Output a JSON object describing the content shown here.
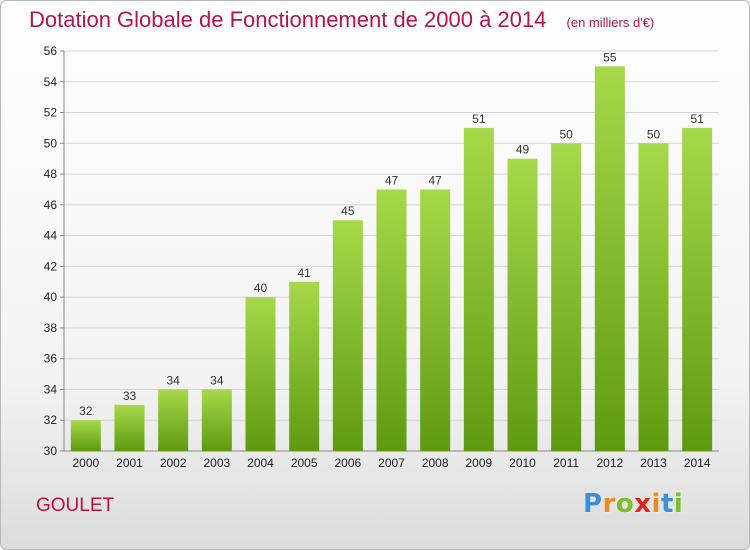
{
  "header": {
    "title": "Dotation Globale de Fonctionnement de 2000 à 2014",
    "subtitle": "(en milliers d'€)"
  },
  "footer": {
    "commune": "GOULET",
    "logo": [
      "P",
      "r",
      "o",
      "x",
      "i",
      "t",
      "i"
    ]
  },
  "colors": {
    "title": "#b5124f",
    "bar_light": "#a6d94a",
    "bar_dark": "#5e9a10",
    "logo": [
      "#3d8fd6",
      "#f08a1e",
      "#7abf26",
      "#e2261d",
      "#f08a1e",
      "#3d8fd6",
      "#7abf26"
    ]
  },
  "chart_data": {
    "type": "bar",
    "categories": [
      "2000",
      "2001",
      "2002",
      "2003",
      "2004",
      "2005",
      "2006",
      "2007",
      "2008",
      "2009",
      "2010",
      "2011",
      "2012",
      "2013",
      "2014"
    ],
    "values": [
      32,
      33,
      34,
      34,
      40,
      41,
      45,
      47,
      47,
      51,
      49,
      50,
      55,
      50,
      51
    ],
    "title": "Dotation Globale de Fonctionnement de 2000 à 2014",
    "subtitle": "(en milliers d'€)",
    "xlabel": "",
    "ylabel": "",
    "ylim": [
      30,
      56
    ],
    "yticks": [
      30,
      32,
      34,
      36,
      38,
      40,
      42,
      44,
      46,
      48,
      50,
      52,
      54,
      56
    ],
    "grid": true,
    "legend": "none"
  }
}
